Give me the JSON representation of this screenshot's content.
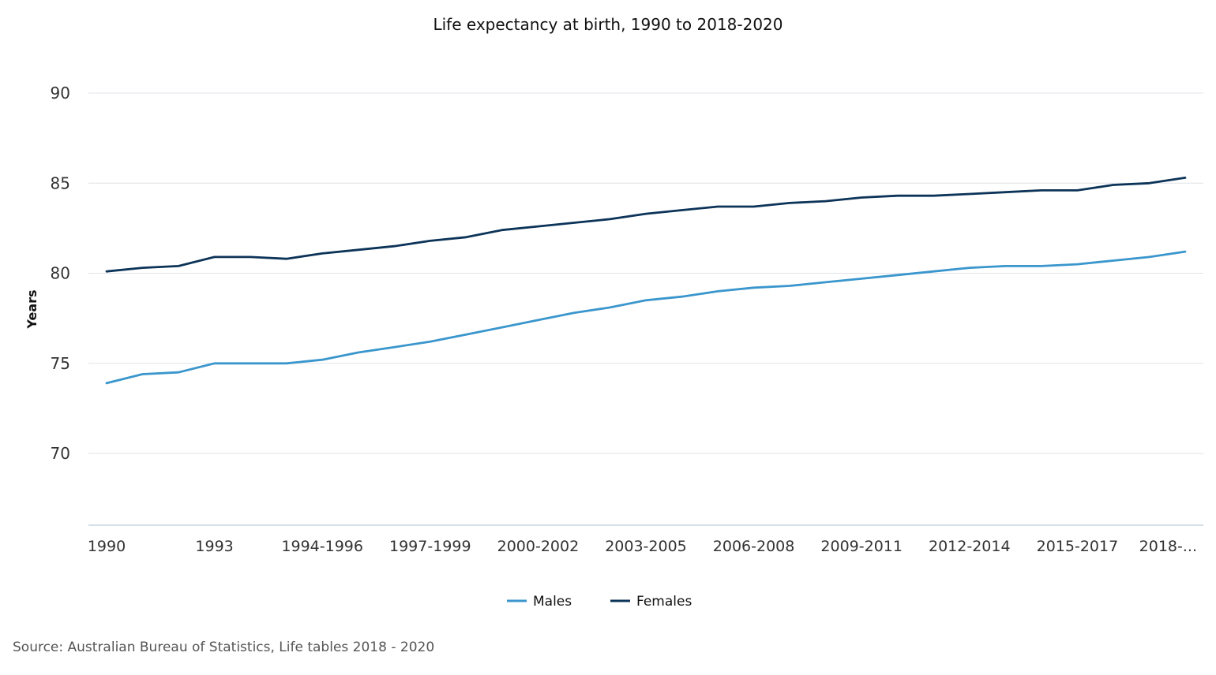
{
  "chart_data": {
    "type": "line",
    "title": "Life expectancy at birth, 1990 to 2018-2020",
    "xlabel": "",
    "ylabel": "Years",
    "ylim": [
      66,
      92
    ],
    "yticks": [
      70,
      75,
      80,
      85,
      90
    ],
    "grid": true,
    "legend_position": "bottom-center",
    "x_tick_labels": [
      "1990",
      "1993",
      "1994-1996",
      "1997-1999",
      "2000-2002",
      "2003-2005",
      "2006-2008",
      "2009-2011",
      "2012-2014",
      "2015-2017",
      "2018-..."
    ],
    "x_tick_indices": [
      0,
      3,
      6,
      9,
      12,
      15,
      18,
      21,
      24,
      27,
      30
    ],
    "points_count": 31,
    "series": [
      {
        "name": "Males",
        "color": "#3a96cc",
        "values": [
          73.9,
          74.4,
          74.5,
          75.0,
          75.0,
          75.0,
          75.2,
          75.6,
          75.9,
          76.2,
          76.6,
          77.0,
          77.4,
          77.8,
          78.1,
          78.5,
          78.7,
          79.0,
          79.2,
          79.3,
          79.5,
          79.7,
          79.9,
          80.1,
          80.3,
          80.4,
          80.4,
          80.5,
          80.7,
          80.9,
          81.2
        ]
      },
      {
        "name": "Females",
        "color": "#0c3358",
        "values": [
          80.1,
          80.3,
          80.4,
          80.9,
          80.9,
          80.8,
          81.1,
          81.3,
          81.5,
          81.8,
          82.0,
          82.4,
          82.6,
          82.8,
          83.0,
          83.3,
          83.5,
          83.7,
          83.7,
          83.9,
          84.0,
          84.2,
          84.3,
          84.3,
          84.4,
          84.5,
          84.6,
          84.6,
          84.9,
          85.0,
          85.3
        ]
      }
    ]
  },
  "source": "Source: Australian Bureau of Statistics, Life tables 2018 - 2020"
}
